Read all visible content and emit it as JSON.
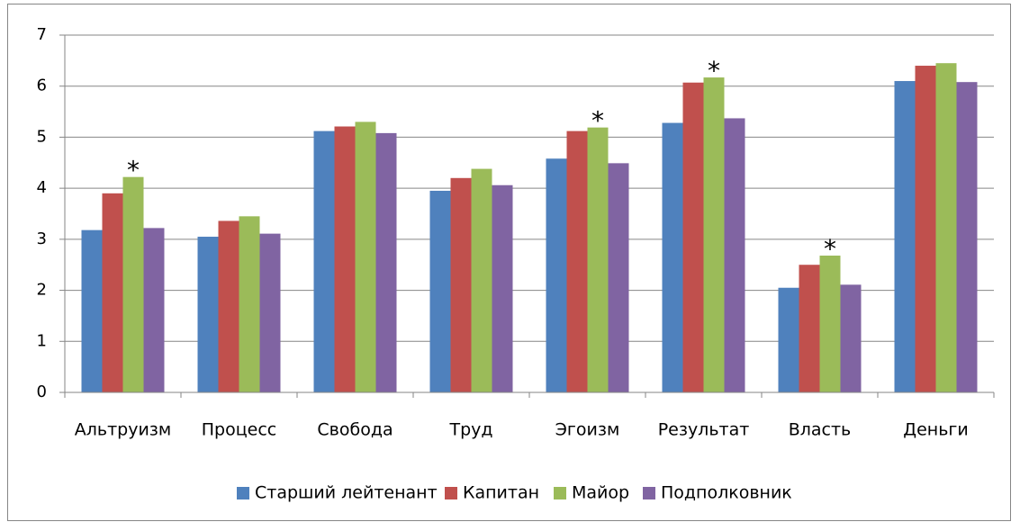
{
  "chart_data": {
    "type": "bar",
    "categories": [
      "Альтруизм",
      "Процесс",
      "Свобода",
      "Труд",
      "Эгоизм",
      "Результат",
      "Власть",
      "Деньги"
    ],
    "series": [
      {
        "name": "Старший лейтенант",
        "color": "#4f81bd",
        "values": [
          3.18,
          3.05,
          5.12,
          3.95,
          4.58,
          5.28,
          2.05,
          6.1
        ]
      },
      {
        "name": "Капитан",
        "color": "#c0504d",
        "values": [
          3.9,
          3.36,
          5.21,
          4.2,
          5.12,
          6.07,
          2.5,
          6.4
        ]
      },
      {
        "name": "Майор",
        "color": "#9bbb59",
        "values": [
          4.22,
          3.45,
          5.3,
          4.38,
          5.19,
          6.17,
          2.68,
          6.45
        ]
      },
      {
        "name": "Подполковник",
        "color": "#8064a2",
        "values": [
          3.22,
          3.11,
          5.08,
          4.06,
          4.49,
          5.37,
          2.11,
          6.08
        ]
      }
    ],
    "ylim": [
      0,
      7
    ],
    "yticks": [
      0,
      1,
      2,
      3,
      4,
      5,
      6,
      7
    ],
    "grid": true,
    "legend": "bottom",
    "annotations": [
      {
        "text": "*",
        "category": "Альтруизм",
        "series": "Майор"
      },
      {
        "text": "*",
        "category": "Эгоизм",
        "series": "Майор"
      },
      {
        "text": "*",
        "category": "Результат",
        "series": "Майор"
      },
      {
        "text": "*",
        "category": "Власть",
        "series": "Майор"
      }
    ]
  }
}
